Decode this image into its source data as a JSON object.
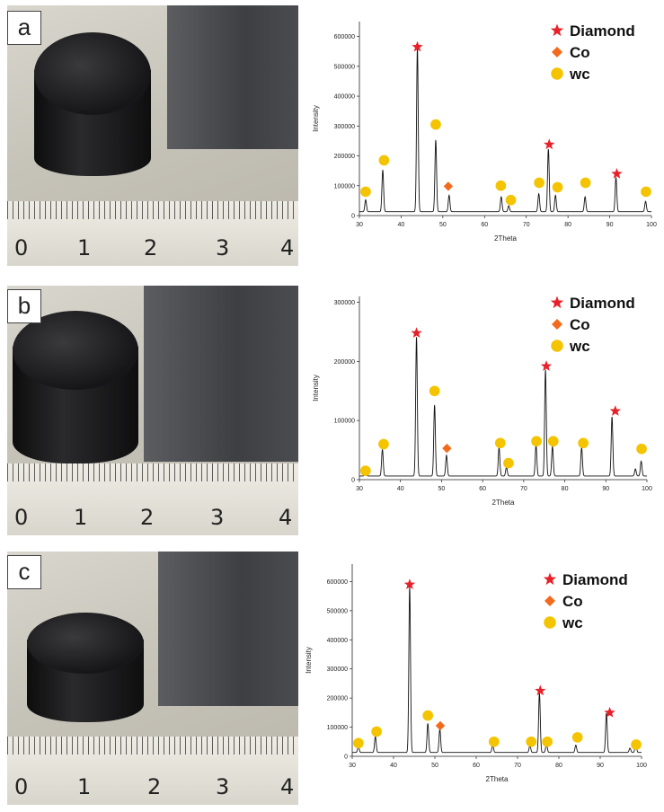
{
  "panels": [
    {
      "label": "a",
      "ruler_numbers": [
        "0",
        "1",
        "2",
        "3",
        "4"
      ]
    },
    {
      "label": "b",
      "ruler_numbers": [
        "0",
        "1",
        "2",
        "3",
        "4"
      ]
    },
    {
      "label": "c",
      "ruler_numbers": [
        "0",
        "1",
        "2",
        "3",
        "4"
      ]
    }
  ],
  "colors": {
    "diamond": "#e8202a",
    "co": "#f26b1d",
    "wc": "#f4c400",
    "line": "#111111"
  },
  "chart_data": [
    {
      "type": "line",
      "xlabel": "2Theta",
      "ylabel": "Intensity",
      "xlim": [
        30,
        100
      ],
      "ylim": [
        0,
        650000
      ],
      "xticks": [
        30,
        40,
        50,
        60,
        70,
        80,
        90,
        100
      ],
      "yticks": [
        0,
        100000,
        200000,
        300000,
        400000,
        500000,
        600000
      ],
      "ytick_labels": [
        "0",
        "100000",
        "200000",
        "300000",
        "400000",
        "500000",
        "600000"
      ],
      "legend": [
        "Diamond",
        "Co",
        "wc"
      ],
      "peaks": [
        [
          31.5,
          40000
        ],
        [
          35.6,
          140000
        ],
        [
          43.9,
          550000
        ],
        [
          48.3,
          240000
        ],
        [
          51.5,
          55000
        ],
        [
          64,
          50000
        ],
        [
          65.8,
          20000
        ],
        [
          73,
          60000
        ],
        [
          75.3,
          210000
        ],
        [
          77,
          55000
        ],
        [
          84.1,
          50000
        ],
        [
          91.5,
          115000
        ],
        [
          98.6,
          35000
        ]
      ],
      "markers": [
        {
          "type": "wc",
          "x": 31.5,
          "y": 80000
        },
        {
          "type": "wc",
          "x": 35.9,
          "y": 185000
        },
        {
          "type": "diamond",
          "x": 43.9,
          "y": 565000
        },
        {
          "type": "wc",
          "x": 48.3,
          "y": 305000
        },
        {
          "type": "co",
          "x": 51.3,
          "y": 98000
        },
        {
          "type": "wc",
          "x": 63.9,
          "y": 100000
        },
        {
          "type": "wc",
          "x": 66.3,
          "y": 52000
        },
        {
          "type": "wc",
          "x": 73.1,
          "y": 110000
        },
        {
          "type": "diamond",
          "x": 75.5,
          "y": 238000
        },
        {
          "type": "wc",
          "x": 77.5,
          "y": 95000
        },
        {
          "type": "wc",
          "x": 84.2,
          "y": 110000
        },
        {
          "type": "diamond",
          "x": 91.7,
          "y": 140000
        },
        {
          "type": "wc",
          "x": 98.7,
          "y": 80000
        }
      ]
    },
    {
      "type": "line",
      "xlabel": "2Theta",
      "ylabel": "Intensity",
      "xlim": [
        30,
        100
      ],
      "ylim": [
        0,
        310000
      ],
      "xticks": [
        30,
        40,
        50,
        60,
        70,
        80,
        90,
        100
      ],
      "yticks": [
        0,
        100000,
        200000,
        300000
      ],
      "ytick_labels": [
        "0",
        "100000",
        "200000",
        "300000"
      ],
      "legend": [
        "Diamond",
        "Co",
        "wc"
      ],
      "peaks": [
        [
          31.5,
          8000
        ],
        [
          35.6,
          45000
        ],
        [
          43.9,
          235000
        ],
        [
          48.3,
          120000
        ],
        [
          51.2,
          35000
        ],
        [
          64,
          48000
        ],
        [
          65.8,
          15000
        ],
        [
          73,
          52000
        ],
        [
          75.3,
          180000
        ],
        [
          77,
          50000
        ],
        [
          84.1,
          48000
        ],
        [
          91.5,
          100000
        ],
        [
          97.2,
          12000
        ],
        [
          98.6,
          25000
        ]
      ],
      "markers": [
        {
          "type": "wc",
          "x": 31.5,
          "y": 15000
        },
        {
          "type": "wc",
          "x": 35.9,
          "y": 60000
        },
        {
          "type": "diamond",
          "x": 43.9,
          "y": 248000
        },
        {
          "type": "wc",
          "x": 48.3,
          "y": 150000
        },
        {
          "type": "co",
          "x": 51.3,
          "y": 53000
        },
        {
          "type": "wc",
          "x": 64.3,
          "y": 62000
        },
        {
          "type": "wc",
          "x": 66.3,
          "y": 28000
        },
        {
          "type": "wc",
          "x": 73.1,
          "y": 65000
        },
        {
          "type": "diamond",
          "x": 75.5,
          "y": 192000
        },
        {
          "type": "wc",
          "x": 77.2,
          "y": 65000
        },
        {
          "type": "wc",
          "x": 84.5,
          "y": 62000
        },
        {
          "type": "diamond",
          "x": 92.3,
          "y": 116000
        },
        {
          "type": "wc",
          "x": 98.7,
          "y": 52000
        }
      ]
    },
    {
      "type": "line",
      "xlabel": "2Theta",
      "ylabel": "Intensity",
      "xlim": [
        30,
        100
      ],
      "ylim": [
        0,
        660000
      ],
      "xticks": [
        30,
        40,
        50,
        60,
        70,
        80,
        90,
        100
      ],
      "yticks": [
        0,
        100000,
        200000,
        300000,
        400000,
        500000,
        600000
      ],
      "ytick_labels": [
        "0",
        "100000",
        "200000",
        "300000",
        "400000",
        "500000",
        "600000"
      ],
      "legend": [
        "Diamond",
        "Co",
        "wc"
      ],
      "peaks": [
        [
          31.5,
          20000
        ],
        [
          35.6,
          55000
        ],
        [
          43.9,
          570000
        ],
        [
          48.3,
          100000
        ],
        [
          51.2,
          80000
        ],
        [
          64,
          25000
        ],
        [
          73,
          25000
        ],
        [
          75.3,
          205000
        ],
        [
          77,
          30000
        ],
        [
          84.1,
          25000
        ],
        [
          91.5,
          135000
        ],
        [
          97.2,
          15000
        ],
        [
          98.6,
          30000
        ]
      ],
      "markers": [
        {
          "type": "wc",
          "x": 31.5,
          "y": 45000
        },
        {
          "type": "wc",
          "x": 35.9,
          "y": 85000
        },
        {
          "type": "diamond",
          "x": 43.9,
          "y": 590000
        },
        {
          "type": "wc",
          "x": 48.3,
          "y": 140000
        },
        {
          "type": "co",
          "x": 51.3,
          "y": 105000
        },
        {
          "type": "wc",
          "x": 64.3,
          "y": 50000
        },
        {
          "type": "wc",
          "x": 73.3,
          "y": 50000
        },
        {
          "type": "diamond",
          "x": 75.5,
          "y": 225000
        },
        {
          "type": "wc",
          "x": 77.2,
          "y": 50000
        },
        {
          "type": "wc",
          "x": 84.5,
          "y": 65000
        },
        {
          "type": "diamond",
          "x": 92.3,
          "y": 150000
        },
        {
          "type": "wc",
          "x": 98.7,
          "y": 40000
        }
      ]
    }
  ]
}
